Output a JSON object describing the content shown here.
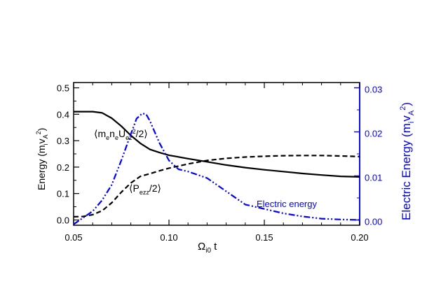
{
  "chart_data": {
    "type": "line",
    "xlabel": "Ω_i0 t",
    "xlim": [
      0.05,
      0.2
    ],
    "xticks": [
      "0.05",
      "0.10",
      "0.15",
      "0.20"
    ],
    "ylabel_left": "Energy (m_i v_A^2)",
    "ylim_left": [
      -0.02,
      0.52
    ],
    "yticks_left": [
      "0.0",
      "0.1",
      "0.2",
      "0.3",
      "0.4",
      "0.5"
    ],
    "ylabel_right": "Electric Energy (m_i v_A^2)",
    "ylim_right": [
      -0.0012,
      0.0312
    ],
    "yticks_right": [
      "0.00",
      "0.01",
      "0.02",
      "0.03"
    ],
    "colors": {
      "left_axis": "#000000",
      "right_axis": "#0000ff"
    },
    "series": [
      {
        "name": "⟨m_e n_e U_ez^2/2⟩",
        "axis": "left",
        "style": "solid",
        "color": "#000000",
        "x": [
          0.05,
          0.06,
          0.065,
          0.07,
          0.075,
          0.08,
          0.085,
          0.09,
          0.095,
          0.1,
          0.11,
          0.12,
          0.13,
          0.14,
          0.15,
          0.16,
          0.17,
          0.18,
          0.19,
          0.2
        ],
        "values": [
          0.41,
          0.41,
          0.405,
          0.385,
          0.355,
          0.32,
          0.29,
          0.267,
          0.255,
          0.245,
          0.232,
          0.22,
          0.208,
          0.198,
          0.19,
          0.183,
          0.176,
          0.17,
          0.165,
          0.163
        ]
      },
      {
        "name": "⟨P_ezz/2⟩",
        "axis": "left",
        "style": "dashed",
        "color": "#000000",
        "x": [
          0.05,
          0.055,
          0.06,
          0.065,
          0.07,
          0.075,
          0.08,
          0.085,
          0.09,
          0.095,
          0.1,
          0.11,
          0.12,
          0.13,
          0.14,
          0.15,
          0.16,
          0.17,
          0.18,
          0.19,
          0.2
        ],
        "values": [
          0.012,
          0.013,
          0.02,
          0.035,
          0.065,
          0.105,
          0.14,
          0.165,
          0.175,
          0.186,
          0.196,
          0.212,
          0.225,
          0.233,
          0.238,
          0.241,
          0.243,
          0.244,
          0.244,
          0.242,
          0.24
        ]
      },
      {
        "name": "Electric energy",
        "axis": "right",
        "style": "dash-dot-dot",
        "color": "#0000ff",
        "x": [
          0.05,
          0.055,
          0.06,
          0.065,
          0.07,
          0.075,
          0.08,
          0.083,
          0.086,
          0.088,
          0.09,
          0.095,
          0.1,
          0.105,
          0.11,
          0.12,
          0.13,
          0.14,
          0.15,
          0.16,
          0.17,
          0.18,
          0.19,
          0.2
        ],
        "values": [
          -0.001,
          0.0005,
          0.002,
          0.0045,
          0.008,
          0.0135,
          0.0195,
          0.023,
          0.0242,
          0.024,
          0.0225,
          0.0175,
          0.0135,
          0.0115,
          0.011,
          0.0095,
          0.0065,
          0.0035,
          0.0025,
          0.0015,
          0.0008,
          0.0003,
          0.0001,
          0.0
        ]
      }
    ],
    "annotations": [
      {
        "text": "⟨m_e n_e U_ez^2/2⟩",
        "color": "#000000"
      },
      {
        "text": "⟨P_ezz/2⟩",
        "color": "#000000"
      },
      {
        "text": "Electric energy",
        "color": "#0000ff"
      }
    ]
  }
}
